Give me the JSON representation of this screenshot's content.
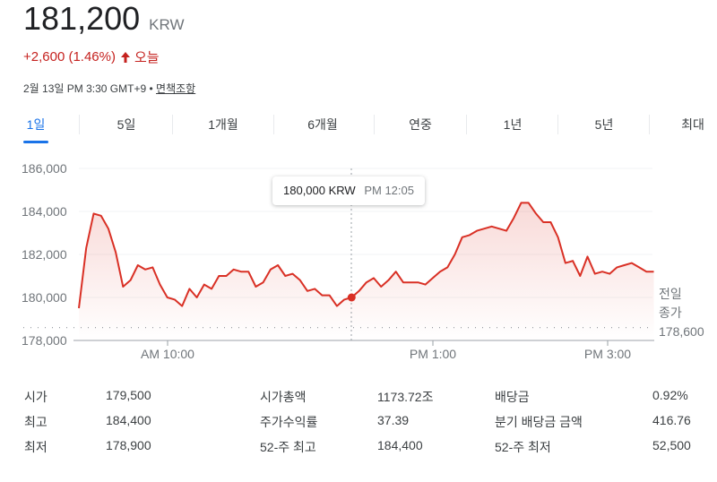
{
  "quote": {
    "price": "181,200",
    "currency": "KRW",
    "change": "+2,600 (1.46%)",
    "change_direction": "up",
    "change_period": "오늘",
    "timestamp": "2월 13일 PM 3:30 GMT+9",
    "separator": "•",
    "disclaimer": "면책조항",
    "up_color": "#c5221f"
  },
  "tabs": [
    {
      "label": "1일",
      "active": true
    },
    {
      "label": "5일",
      "active": false
    },
    {
      "label": "1개월",
      "active": false
    },
    {
      "label": "6개월",
      "active": false
    },
    {
      "label": "연중",
      "active": false
    },
    {
      "label": "1년",
      "active": false
    },
    {
      "label": "5년",
      "active": false
    },
    {
      "label": "최대",
      "active": false
    }
  ],
  "tooltip": {
    "value": "180,000 KRW",
    "time": "PM 12:05"
  },
  "prev_close": {
    "line1": "전일",
    "line2": "종가",
    "value": "178,600"
  },
  "chart_data": {
    "type": "area",
    "title": "",
    "xlabel": "",
    "ylabel": "KRW",
    "ylim": [
      178000,
      186000
    ],
    "yticks": [
      "186,000",
      "184,000",
      "182,000",
      "180,000",
      "178,000"
    ],
    "xticks": [
      "AM 10:00",
      "PM 1:00",
      "PM 3:00"
    ],
    "grid": true,
    "legend": "none",
    "line_color": "#d93025",
    "reference_line": {
      "label": "전일 종가",
      "value": 178600
    },
    "hover": {
      "time": "PM 12:05",
      "value": 180000
    },
    "series": [
      {
        "name": "price",
        "x": [
          "09:00",
          "09:05",
          "09:10",
          "09:15",
          "09:20",
          "09:25",
          "09:30",
          "09:35",
          "09:40",
          "09:45",
          "09:50",
          "09:55",
          "10:00",
          "10:05",
          "10:10",
          "10:15",
          "10:20",
          "10:25",
          "10:30",
          "10:35",
          "10:40",
          "10:45",
          "10:50",
          "10:55",
          "11:00",
          "11:05",
          "11:10",
          "11:15",
          "11:20",
          "11:25",
          "11:30",
          "11:35",
          "11:40",
          "11:45",
          "11:50",
          "11:55",
          "12:00",
          "12:05",
          "12:10",
          "12:15",
          "12:20",
          "12:25",
          "12:30",
          "12:35",
          "12:40",
          "12:45",
          "12:50",
          "12:55",
          "13:00",
          "13:05",
          "13:10",
          "13:15",
          "13:20",
          "13:25",
          "13:30",
          "13:35",
          "13:40",
          "13:45",
          "13:50",
          "13:55",
          "14:00",
          "14:05",
          "14:10",
          "14:15",
          "14:20",
          "14:25",
          "14:30",
          "14:35",
          "14:40",
          "14:45",
          "14:50",
          "14:55",
          "15:00",
          "15:05",
          "15:10",
          "15:15",
          "15:20",
          "15:25",
          "15:30"
        ],
        "values": [
          179500,
          182300,
          183900,
          183800,
          183200,
          182100,
          180500,
          180800,
          181500,
          181300,
          181400,
          180600,
          180000,
          179900,
          179600,
          180400,
          180000,
          180600,
          180400,
          181000,
          181000,
          181300,
          181200,
          181200,
          180500,
          180700,
          181300,
          181500,
          181000,
          181100,
          180800,
          180300,
          180400,
          180100,
          180100,
          179600,
          179900,
          180000,
          180300,
          180700,
          180900,
          180500,
          180800,
          181200,
          180700,
          180700,
          180700,
          180600,
          180900,
          181200,
          181400,
          182000,
          182800,
          182900,
          183100,
          183200,
          183300,
          183200,
          183100,
          183700,
          184400,
          184400,
          183900,
          183500,
          183500,
          182800,
          181600,
          181700,
          181000,
          181900,
          181100,
          181200,
          181100,
          181400,
          181500,
          181600,
          181400,
          181200,
          181200
        ]
      }
    ]
  },
  "stats": {
    "col1": [
      {
        "label": "시가",
        "value": "179,500"
      },
      {
        "label": "최고",
        "value": "184,400"
      },
      {
        "label": "최저",
        "value": "178,900"
      }
    ],
    "col2": [
      {
        "label": "시가총액",
        "value": "1173.72조"
      },
      {
        "label": "주가수익률",
        "value": "37.39"
      },
      {
        "label": "52-주 최고",
        "value": "184,400"
      }
    ],
    "col3": [
      {
        "label": "배당금",
        "value": "0.92%"
      },
      {
        "label": "분기 배당금 금액",
        "value": "416.76"
      },
      {
        "label": "52-주 최저",
        "value": "52,500"
      }
    ]
  }
}
